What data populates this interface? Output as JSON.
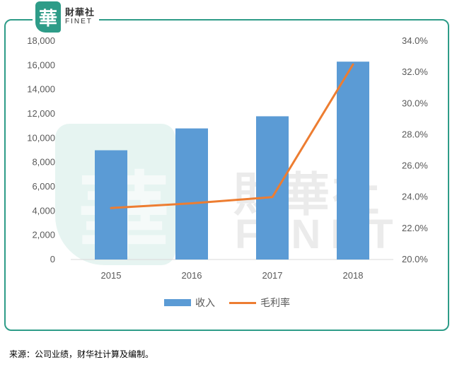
{
  "logo": {
    "glyph": "華",
    "cn": "財華社",
    "en": "FINET"
  },
  "watermark": {
    "cn": "財華社",
    "en": "FINET",
    "glyph": "華"
  },
  "colors": {
    "bar": "#5b9bd5",
    "line": "#ed7d31",
    "frame": "#2e9c88"
  },
  "chart_data": {
    "type": "bar",
    "categories": [
      "2015",
      "2016",
      "2017",
      "2018"
    ],
    "series": [
      {
        "name": "收入",
        "type": "bar",
        "axis": "left",
        "values": [
          9000,
          10800,
          11800,
          16300
        ]
      },
      {
        "name": "毛利率",
        "type": "line",
        "axis": "right",
        "values": [
          23.3,
          23.6,
          24.0,
          32.5
        ]
      }
    ],
    "ylim": [
      0,
      18000
    ],
    "yticks": [
      "0",
      "2,000",
      "4,000",
      "6,000",
      "8,000",
      "10,000",
      "12,000",
      "14,000",
      "16,000",
      "18,000"
    ],
    "y2lim": [
      20,
      34
    ],
    "y2ticks": [
      "20.0%",
      "22.0%",
      "24.0%",
      "26.0%",
      "28.0%",
      "30.0%",
      "32.0%",
      "34.0%"
    ],
    "grid": false,
    "legend_position": "bottom"
  },
  "source_note": "来源：公司业绩，财华社计算及编制。"
}
